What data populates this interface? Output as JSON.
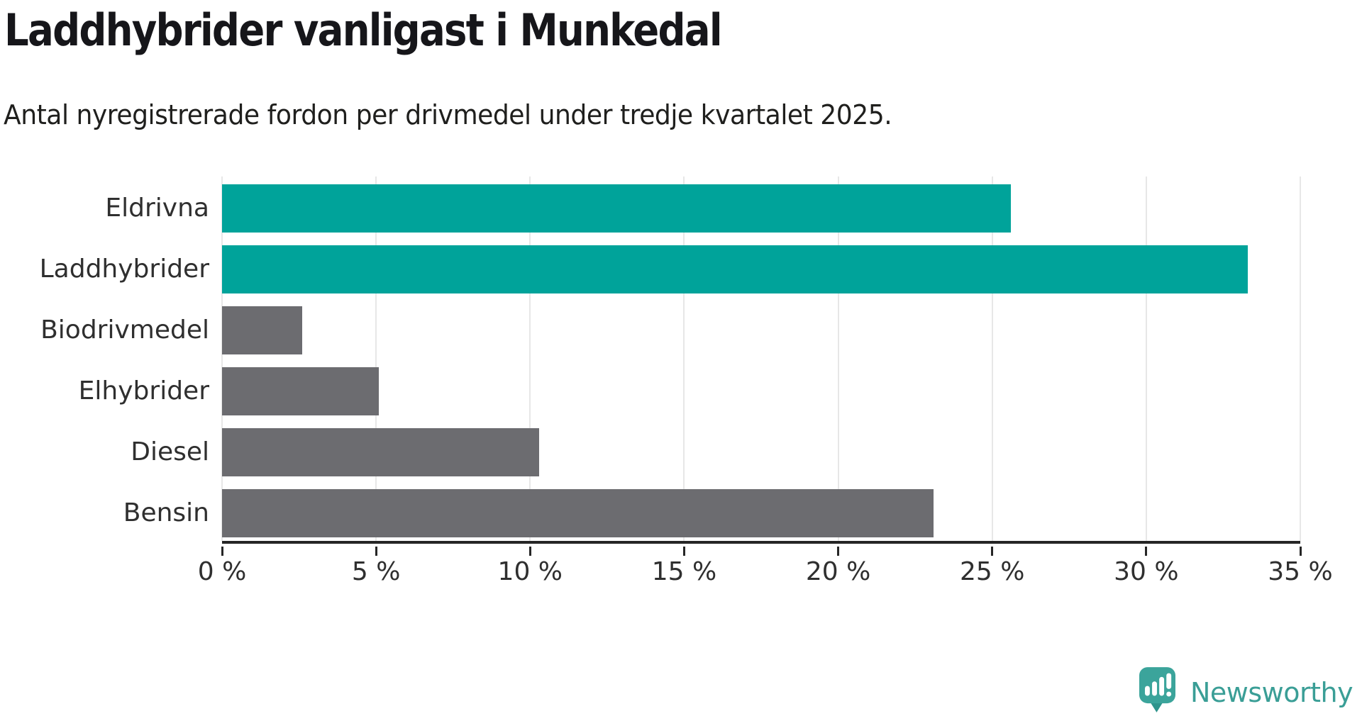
{
  "header": {
    "title": "Laddhybrider vanligast i Munkedal",
    "subtitle": "Antal nyregistrerade fordon per drivmedel under tredje kvartalet 2025."
  },
  "chart_data": {
    "type": "bar",
    "orientation": "horizontal",
    "title": "Laddhybrider vanligast i Munkedal",
    "subtitle": "Antal nyregistrerade fordon per drivmedel under tredje kvartalet 2025.",
    "categories": [
      "Eldrivna",
      "Laddhybrider",
      "Biodrivmedel",
      "Elhybrider",
      "Diesel",
      "Bensin"
    ],
    "values": [
      25.6,
      33.3,
      2.6,
      5.1,
      10.3,
      23.1
    ],
    "value_unit": "%",
    "highlighted": [
      true,
      true,
      false,
      false,
      false,
      false
    ],
    "colors": {
      "highlight": "#00a39a",
      "default": "#6c6c70"
    },
    "xlim": [
      0,
      35
    ],
    "x_ticks": [
      {
        "value": 0,
        "label": "0 %"
      },
      {
        "value": 5,
        "label": "5 %"
      },
      {
        "value": 10,
        "label": "10 %"
      },
      {
        "value": 15,
        "label": "15 %"
      },
      {
        "value": 20,
        "label": "20 %"
      },
      {
        "value": 25,
        "label": "25 %"
      },
      {
        "value": 30,
        "label": "30 %"
      },
      {
        "value": 35,
        "label": "35 %"
      }
    ],
    "grid": true,
    "legend_position": "none"
  },
  "branding": {
    "logo_text": "Newsworthy",
    "logo_color": "#3a9e96",
    "logo_icon": "newsworthy-speech-bubble-bar-chart-icon",
    "icon_fill": "#3ba49b",
    "icon_tail_fill": "#2e948c"
  }
}
